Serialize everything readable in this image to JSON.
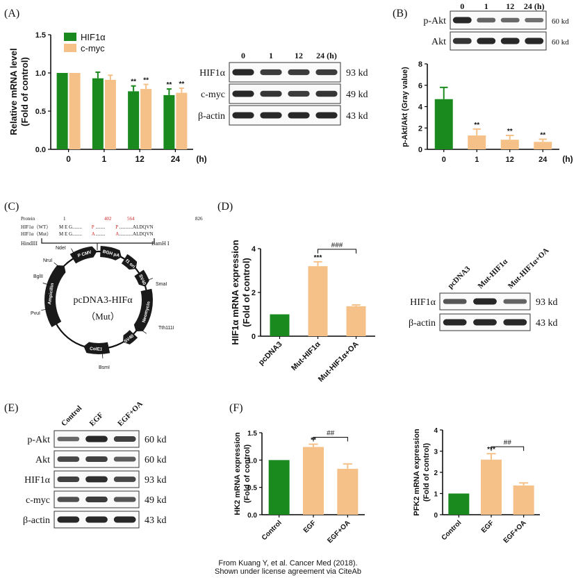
{
  "colors": {
    "green": "#1a8a1f",
    "orange": "#f6c188",
    "blot": "#1c1c1c",
    "red": "#cc2a2a"
  },
  "panels": {
    "A": "(A)",
    "B": "(B)",
    "C": "(C)",
    "D": "(D)",
    "E": "(E)",
    "F": "(F)"
  },
  "chart_data": [
    {
      "type": "bar",
      "panel": "A",
      "categories": [
        "0",
        "1",
        "12",
        "24"
      ],
      "x_unit": "(h)",
      "ylabel": "Relative mRNA level (Fold of control)",
      "ylim": [
        0,
        1.5
      ],
      "yticks": [
        "0.0",
        "0.5",
        "1.0",
        "1.5"
      ],
      "legend": "top-left",
      "series": [
        {
          "name": "HIF1α",
          "color": "green",
          "values": [
            1.0,
            0.93,
            0.76,
            0.71
          ],
          "errors": [
            0,
            0.08,
            0.07,
            0.08
          ],
          "sig": [
            "",
            "",
            "**",
            "**"
          ]
        },
        {
          "name": "c-myc",
          "color": "orange",
          "values": [
            1.0,
            0.91,
            0.79,
            0.74
          ],
          "errors": [
            0,
            0.06,
            0.06,
            0.06
          ],
          "sig": [
            "",
            "",
            "**",
            "**"
          ]
        }
      ]
    },
    {
      "type": "bar",
      "panel": "B",
      "categories": [
        "0",
        "1",
        "12",
        "24"
      ],
      "x_unit": "(h)",
      "ylabel": "p-Akt/Akt (Gray value)",
      "ylim": [
        0,
        8
      ],
      "yticks": [
        "0",
        "2",
        "4",
        "6",
        "8"
      ],
      "series": [
        {
          "values": [
            4.7,
            1.3,
            0.9,
            0.7
          ],
          "errors": [
            1.1,
            0.6,
            0.4,
            0.25
          ],
          "colors": [
            "green",
            "orange",
            "orange",
            "orange"
          ],
          "sig": [
            "",
            "**",
            "**",
            "**"
          ]
        }
      ]
    },
    {
      "type": "bar",
      "panel": "D",
      "categories": [
        "pcDNA3",
        "Mut-HIF1α",
        "Mut-HIF1α+OA"
      ],
      "ylabel": "HIF1α mRNA expression (Fold of control)",
      "ylim": [
        0,
        4
      ],
      "yticks": [
        "0",
        "2",
        "4"
      ],
      "series": [
        {
          "values": [
            1.0,
            3.2,
            1.37
          ],
          "errors": [
            0,
            0.2,
            0.06
          ],
          "colors": [
            "green",
            "orange",
            "orange"
          ],
          "sig": [
            "",
            "***",
            ""
          ]
        }
      ],
      "bracket": "###"
    },
    {
      "type": "bar",
      "panel": "F-left",
      "categories": [
        "Control",
        "EGF",
        "EGF+OA"
      ],
      "ylabel": "HK2 mRNA expression (Fold of control)",
      "ylim": [
        0,
        1.5
      ],
      "yticks": [
        "0.0",
        "0.5",
        "1.0",
        "1.5"
      ],
      "series": [
        {
          "values": [
            1.0,
            1.24,
            0.84
          ],
          "errors": [
            0,
            0.05,
            0.09
          ],
          "colors": [
            "green",
            "orange",
            "orange"
          ],
          "sig": [
            "",
            "**",
            ""
          ]
        }
      ],
      "bracket": "##"
    },
    {
      "type": "bar",
      "panel": "F-right",
      "categories": [
        "Control",
        "EGF",
        "EGF+OA"
      ],
      "ylabel": "PFK2 mRNA expression (Fold of control)",
      "ylim": [
        0,
        4
      ],
      "yticks": [
        "0",
        "1",
        "2",
        "3",
        "4"
      ],
      "series": [
        {
          "values": [
            1.0,
            2.6,
            1.38
          ],
          "errors": [
            0,
            0.28,
            0.12
          ],
          "colors": [
            "green",
            "orange",
            "orange"
          ],
          "sig": [
            "",
            "***",
            ""
          ]
        }
      ],
      "bracket": "##"
    }
  ],
  "blots": {
    "A": {
      "lanes": [
        "0",
        "1",
        "12",
        "24 (h)"
      ],
      "rows": [
        {
          "label": "HIF1α",
          "kd": "93 kd",
          "intensity": [
            1,
            0.85,
            0.85,
            0.85
          ]
        },
        {
          "label": "c-myc",
          "kd": "49 kd",
          "intensity": [
            1,
            0.9,
            0.85,
            0.9
          ]
        },
        {
          "label": "β-actin",
          "kd": "43 kd",
          "intensity": [
            1,
            1,
            1,
            1
          ]
        }
      ]
    },
    "B": {
      "lanes": [
        "0",
        "1",
        "12",
        "24 (h)"
      ],
      "rows": [
        {
          "label": "p-Akt",
          "kd": "60 kd",
          "intensity": [
            1,
            0.55,
            0.5,
            0.45
          ]
        },
        {
          "label": "Akt",
          "kd": "60 kd",
          "intensity": [
            0.9,
            1,
            1,
            1
          ]
        }
      ]
    },
    "D": {
      "lanes": [
        "pcDNA3",
        "Mut-HIF1α",
        "Mut-HIF1α+OA"
      ],
      "rows": [
        {
          "label": "HIF1α",
          "kd": "93 kd",
          "intensity": [
            0.65,
            1,
            0.55
          ]
        },
        {
          "label": "β-actin",
          "kd": "43 kd",
          "intensity": [
            1,
            1,
            1
          ]
        }
      ]
    },
    "E": {
      "lanes": [
        "Control",
        "EGF",
        "EGF+OA"
      ],
      "rows": [
        {
          "label": "p-Akt",
          "kd": "60 kd",
          "intensity": [
            0.5,
            1,
            0.8
          ]
        },
        {
          "label": "Akt",
          "kd": "60 kd",
          "intensity": [
            0.75,
            0.8,
            0.6
          ]
        },
        {
          "label": "HIF1α",
          "kd": "93 kd",
          "intensity": [
            0.8,
            0.95,
            0.75
          ]
        },
        {
          "label": "c-myc",
          "kd": "49 kd",
          "intensity": [
            0.7,
            0.85,
            0.65
          ]
        },
        {
          "label": "β-actin",
          "kd": "43 kd",
          "intensity": [
            1,
            1,
            1
          ]
        }
      ]
    }
  },
  "plasmid": {
    "name": "pcDNA3-HIFα",
    "variant": "（Mut）",
    "protein_header": {
      "label": "Protein",
      "positions": [
        "1",
        "402",
        "564",
        "826"
      ]
    },
    "wt_row": {
      "label": "HIF1α（WT）",
      "seq": [
        "M E G........",
        "P",
        "........",
        "P",
        "...........ALDQVN"
      ]
    },
    "mut_row": {
      "label": "HIF1α（Mut）",
      "seq": [
        "M E G........",
        "A",
        "........",
        "A",
        "...........ALDQVN"
      ]
    },
    "left_site": "HindIII",
    "right_site": "BamH I",
    "features": [
      "P CMV",
      "BGH pA",
      "f1 ori",
      "SV40",
      "Neomycin",
      "SV40",
      "ColE1",
      "Ampicillin"
    ],
    "sites": [
      "NdeI",
      "NruI",
      "BglII",
      "PvuI",
      "SmaI",
      "Tth111I",
      "BsmI"
    ]
  },
  "credit": [
    "From Kuang Y, et al. Cancer Med (2018).",
    "Shown under license agreement via CiteAb"
  ]
}
